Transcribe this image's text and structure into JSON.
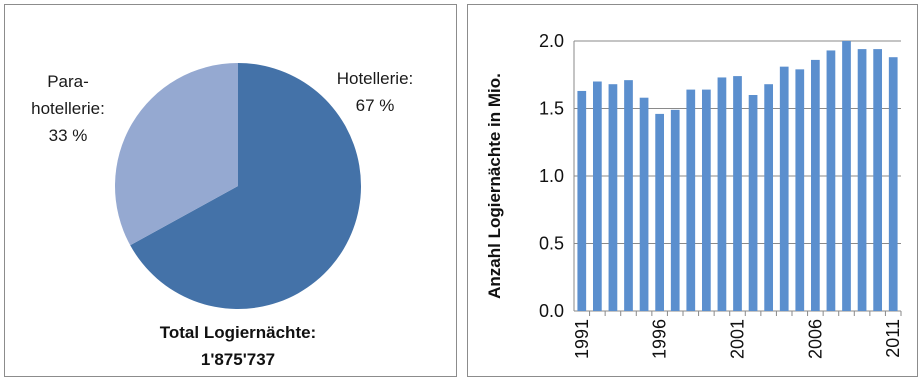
{
  "chart_data": [
    {
      "type": "pie",
      "slices": [
        {
          "name": "Hotellerie",
          "label_lines": [
            "Hotellerie:",
            "67 %"
          ],
          "value": 67,
          "color": "#4472a8"
        },
        {
          "name": "Parahotellerie",
          "label_lines": [
            "Para-",
            "hotellerie:",
            "33 %"
          ],
          "value": 33,
          "color": "#95a9d1"
        }
      ],
      "total_lines": [
        "Total Logiernächte:",
        "1'875'737"
      ]
    },
    {
      "type": "bar",
      "x": [
        1991,
        1992,
        1993,
        1994,
        1995,
        1996,
        1997,
        1998,
        1999,
        2000,
        2001,
        2002,
        2003,
        2004,
        2005,
        2006,
        2007,
        2008,
        2009,
        2010,
        2011
      ],
      "values": [
        1.63,
        1.7,
        1.68,
        1.71,
        1.58,
        1.46,
        1.49,
        1.64,
        1.64,
        1.73,
        1.74,
        1.6,
        1.68,
        1.81,
        1.79,
        1.86,
        1.93,
        2.0,
        1.94,
        1.94,
        1.88
      ],
      "xtick_labels": [
        "1991",
        "1996",
        "2001",
        "2006",
        "2011"
      ],
      "ytick_labels": [
        "0.0",
        "0.5",
        "1.0",
        "1.5",
        "2.0"
      ],
      "ylim": [
        0,
        2.0
      ],
      "ylabel": "Anzahl Logiernächte in Mio.",
      "bar_color": "#5b8fce",
      "grid": true
    }
  ]
}
